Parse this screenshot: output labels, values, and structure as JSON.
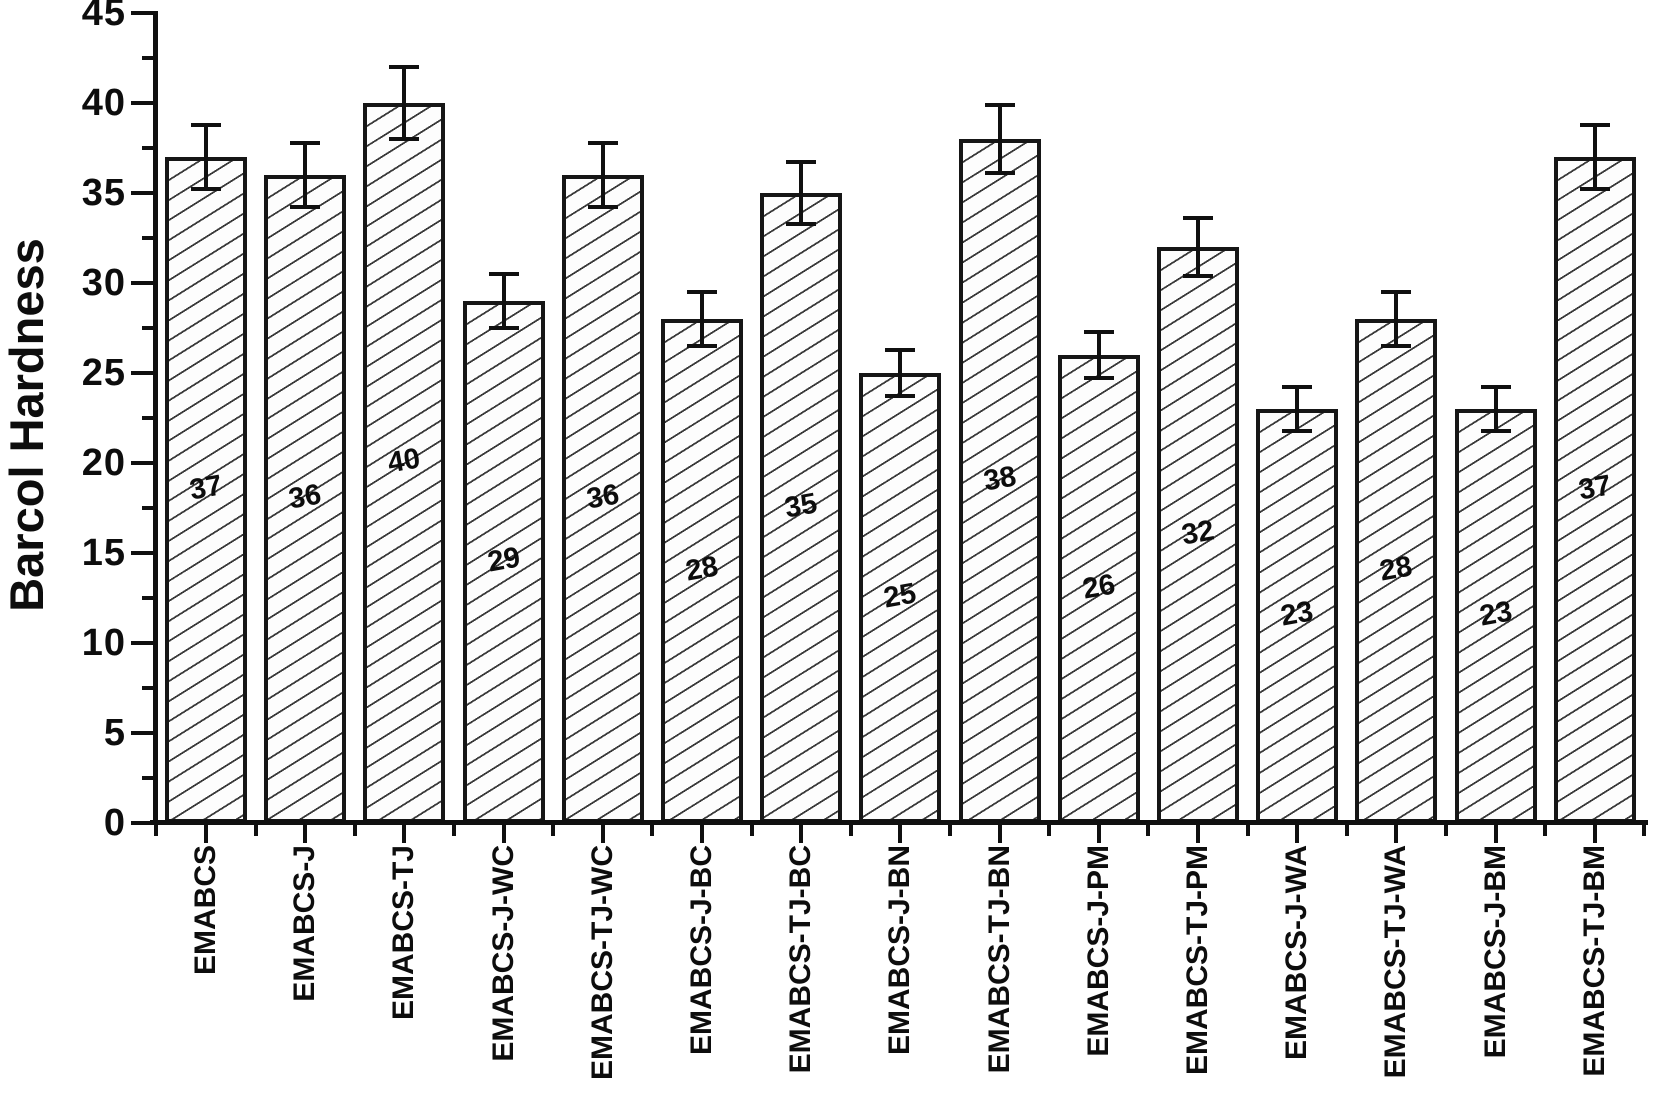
{
  "chart_data": {
    "type": "bar",
    "title": "",
    "ylabel": "Barcol Hardness",
    "xlabel": "",
    "ylim": [
      0,
      45
    ],
    "ytick_labels": [
      "0",
      "5",
      "10",
      "15",
      "20",
      "25",
      "30",
      "35",
      "40",
      "45"
    ],
    "ytick_major_step": 5,
    "ytick_minor_step": 2.5,
    "grid": false,
    "legend": "none",
    "bar_style": {
      "fill": "#fdfdfd",
      "hatch": "diagonal-forward",
      "stroke": "#161616",
      "error_bar_color": "#101010"
    },
    "categories": [
      "EMABCS",
      "EMABCS-J",
      "EMABCS-TJ",
      "EMABCS-J-WC",
      "EMABCS-TJ-WC",
      "EMABCS-J-BC",
      "EMABCS-TJ-BC",
      "EMABCS-J-BN",
      "EMABCS-TJ-BN",
      "EMABCS-J-PM",
      "EMABCS-TJ-PM",
      "EMABCS-J-WA",
      "EMABCS-TJ-WA",
      "EMABCS-J-BM",
      "EMABCS-TJ-BM"
    ],
    "values": [
      37,
      36,
      40,
      29,
      36,
      28,
      35,
      25,
      38,
      26,
      32,
      23,
      28,
      23,
      37
    ],
    "errors": [
      1.8,
      1.8,
      2.0,
      1.5,
      1.8,
      1.5,
      1.7,
      1.3,
      1.9,
      1.3,
      1.6,
      1.2,
      1.5,
      1.2,
      1.8
    ],
    "bar_value_labels": [
      "37",
      "36",
      "40",
      "29",
      "36",
      "28",
      "35",
      "25",
      "38",
      "26",
      "32",
      "23",
      "28",
      "23",
      "37"
    ]
  }
}
